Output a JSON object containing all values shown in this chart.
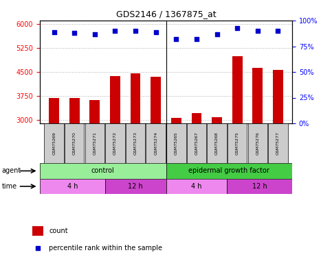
{
  "title": "GDS2146 / 1367875_at",
  "samples": [
    "GSM75269",
    "GSM75270",
    "GSM75271",
    "GSM75272",
    "GSM75273",
    "GSM75274",
    "GSM75265",
    "GSM75267",
    "GSM75268",
    "GSM75275",
    "GSM75276",
    "GSM75277"
  ],
  "counts": [
    3700,
    3680,
    3620,
    4380,
    4460,
    4350,
    3080,
    3220,
    3090,
    5000,
    4620,
    4570
  ],
  "percentile_ranks": [
    89,
    88,
    87,
    90,
    90,
    89,
    82,
    82,
    87,
    93,
    90,
    90
  ],
  "ylim_left": [
    2900,
    6100
  ],
  "ylim_right": [
    0,
    100
  ],
  "yticks_left": [
    3000,
    3750,
    4500,
    5250,
    6000
  ],
  "yticks_right": [
    0,
    25,
    50,
    75,
    100
  ],
  "bar_color": "#cc0000",
  "dot_color": "#0000cc",
  "grid_color": "#aaaaaa",
  "agent_groups": [
    {
      "label": "control",
      "start": 0,
      "end": 6,
      "color": "#99ee99"
    },
    {
      "label": "epidermal growth factor",
      "start": 6,
      "end": 12,
      "color": "#44cc44"
    }
  ],
  "time_groups": [
    {
      "label": "4 h",
      "start": 0,
      "end": 3,
      "color": "#ee88ee"
    },
    {
      "label": "12 h",
      "start": 3,
      "end": 6,
      "color": "#cc44cc"
    },
    {
      "label": "4 h",
      "start": 6,
      "end": 9,
      "color": "#ee88ee"
    },
    {
      "label": "12 h",
      "start": 9,
      "end": 12,
      "color": "#cc44cc"
    }
  ],
  "sample_box_color": "#cccccc",
  "bar_width": 0.5
}
